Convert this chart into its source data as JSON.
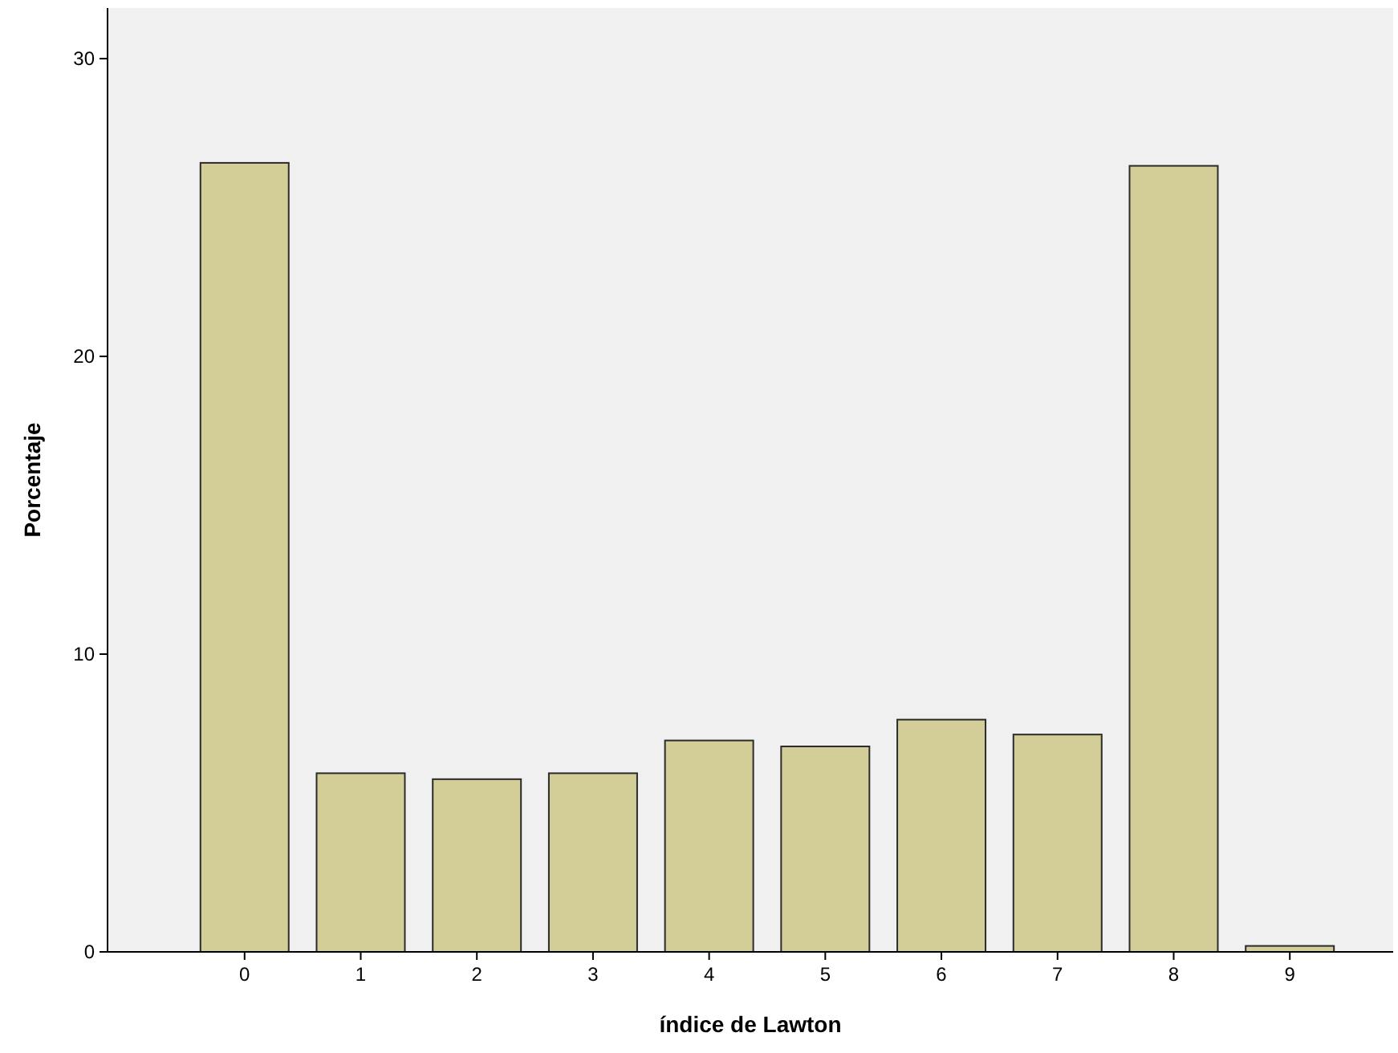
{
  "chart_data": {
    "type": "bar",
    "xlabel": "índice de Lawton",
    "ylabel": "Porcentaje",
    "categories": [
      "0",
      "1",
      "2",
      "3",
      "4",
      "5",
      "6",
      "7",
      "8",
      "9"
    ],
    "values": [
      26.5,
      6.0,
      5.8,
      6.0,
      7.1,
      6.9,
      7.8,
      7.3,
      26.4,
      0.2
    ],
    "color": "#d3ce97",
    "ylim": [
      0,
      31.7
    ],
    "yticks": [
      0,
      10,
      20,
      30
    ],
    "grid": false
  }
}
